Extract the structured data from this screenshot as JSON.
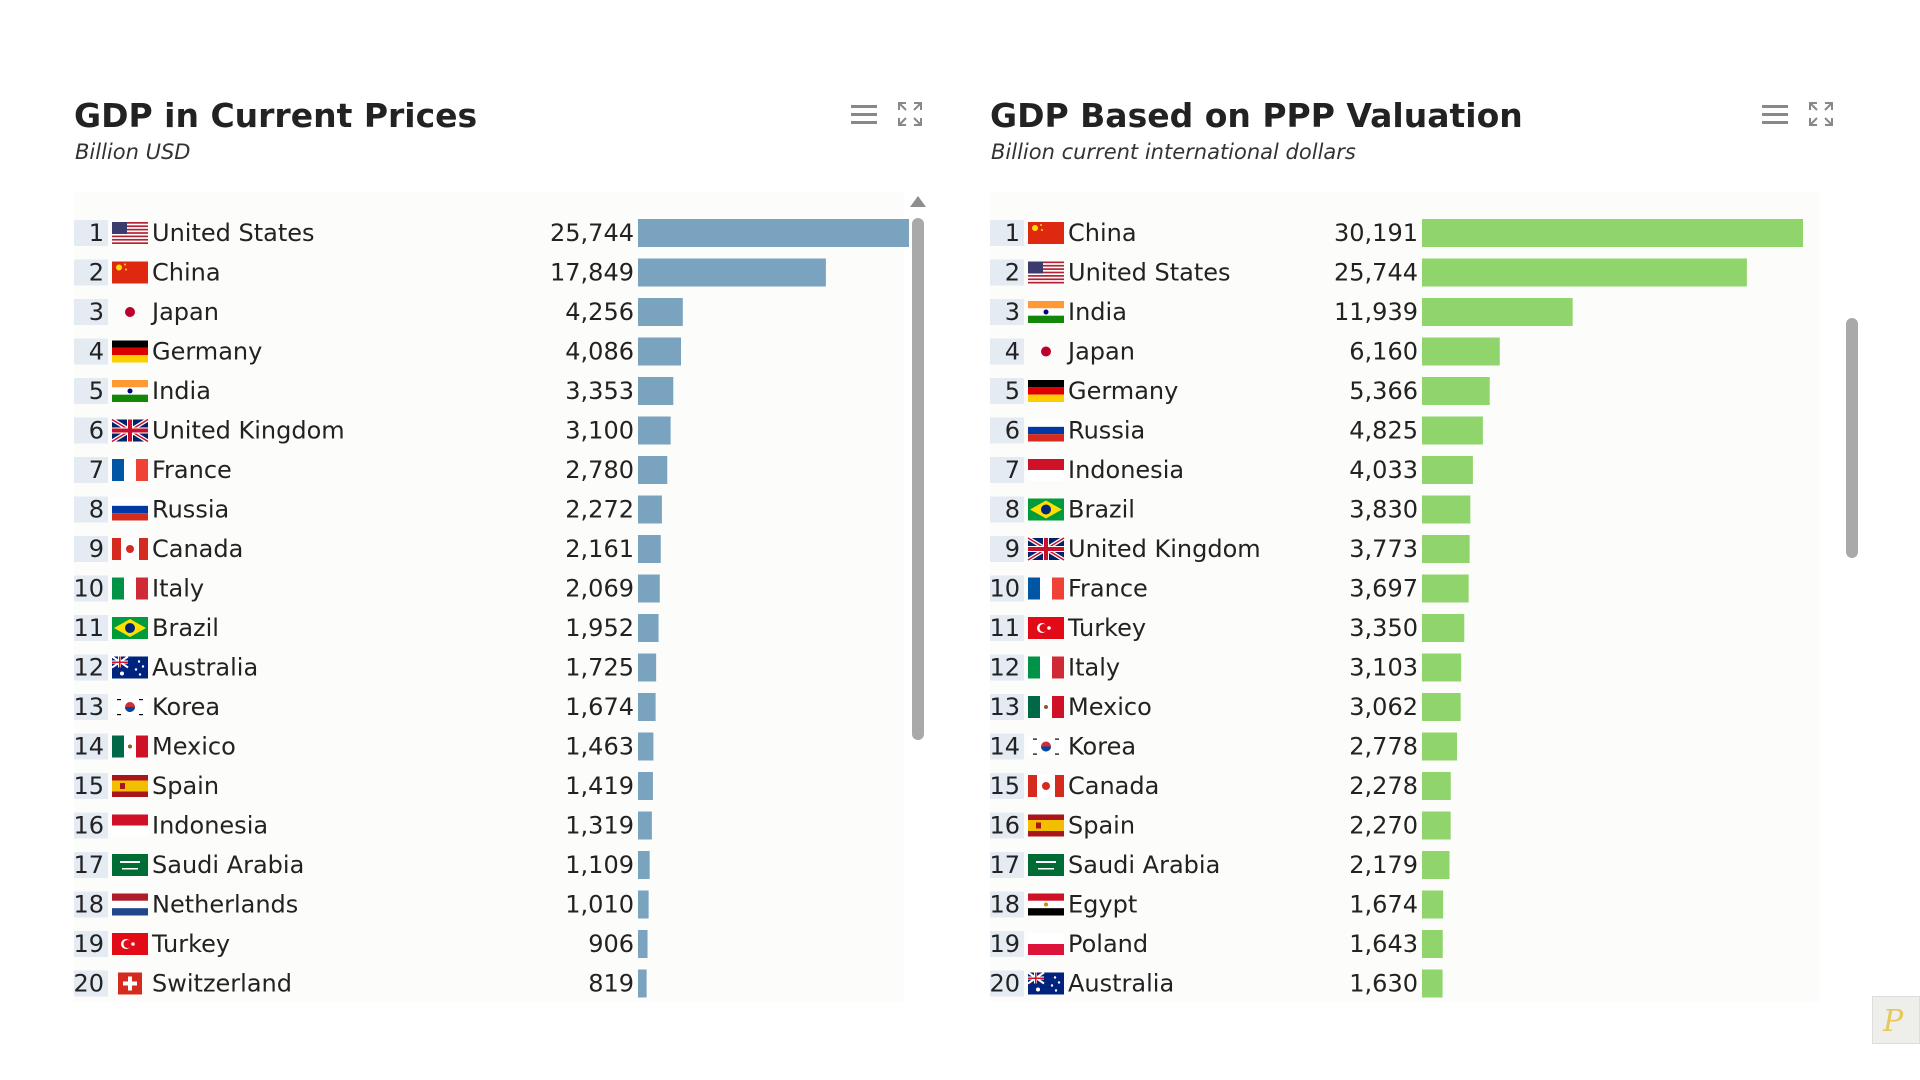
{
  "chart_data": [
    {
      "type": "bar",
      "orientation": "horizontal",
      "title": "GDP in Current Prices",
      "subtitle": "Billion USD",
      "xlim": [
        0,
        25744
      ],
      "ranks": [
        "1",
        "2",
        "3",
        "4",
        "5",
        "6",
        "7",
        "8",
        "9",
        "10",
        "11",
        "12",
        "13",
        "14",
        "15",
        "16",
        "17",
        "18",
        "19",
        "20"
      ],
      "categories": [
        "United States",
        "China",
        "Japan",
        "Germany",
        "India",
        "United Kingdom",
        "France",
        "Russia",
        "Canada",
        "Italy",
        "Brazil",
        "Australia",
        "Korea",
        "Mexico",
        "Spain",
        "Indonesia",
        "Saudi Arabia",
        "Netherlands",
        "Turkey",
        "Switzerland"
      ],
      "flags": [
        "us-flag-icon",
        "cn-flag-icon",
        "jp-flag-icon",
        "de-flag-icon",
        "in-flag-icon",
        "gb-flag-icon",
        "fr-flag-icon",
        "ru-flag-icon",
        "ca-flag-icon",
        "it-flag-icon",
        "br-flag-icon",
        "au-flag-icon",
        "kr-flag-icon",
        "mx-flag-icon",
        "es-flag-icon",
        "id-flag-icon",
        "sa-flag-icon",
        "nl-flag-icon",
        "tr-flag-icon",
        "ch-flag-icon"
      ],
      "values": [
        25744,
        17849,
        4256,
        4086,
        3353,
        3100,
        2780,
        2272,
        2161,
        2069,
        1952,
        1725,
        1674,
        1463,
        1419,
        1319,
        1109,
        1010,
        906,
        819
      ],
      "value_labels": [
        "25,744",
        "17,849",
        "4,256",
        "4,086",
        "3,353",
        "3,100",
        "2,780",
        "2,272",
        "2,161",
        "2,069",
        "1,952",
        "1,725",
        "1,674",
        "1,463",
        "1,419",
        "1,319",
        "1,109",
        "1,010",
        "906",
        "819"
      ],
      "bar_color": "#7aa3c0",
      "grid": false
    },
    {
      "type": "bar",
      "orientation": "horizontal",
      "title": "GDP Based on PPP Valuation",
      "subtitle": "Billion current international dollars",
      "xlim": [
        0,
        30191
      ],
      "ranks": [
        "1",
        "2",
        "3",
        "4",
        "5",
        "6",
        "7",
        "8",
        "9",
        "10",
        "11",
        "12",
        "13",
        "14",
        "15",
        "16",
        "17",
        "18",
        "19",
        "20"
      ],
      "categories": [
        "China",
        "United States",
        "India",
        "Japan",
        "Germany",
        "Russia",
        "Indonesia",
        "Brazil",
        "United Kingdom",
        "France",
        "Turkey",
        "Italy",
        "Mexico",
        "Korea",
        "Canada",
        "Spain",
        "Saudi Arabia",
        "Egypt",
        "Poland",
        "Australia"
      ],
      "flags": [
        "cn-flag-icon",
        "us-flag-icon",
        "in-flag-icon",
        "jp-flag-icon",
        "de-flag-icon",
        "ru-flag-icon",
        "id-flag-icon",
        "br-flag-icon",
        "gb-flag-icon",
        "fr-flag-icon",
        "tr-flag-icon",
        "it-flag-icon",
        "mx-flag-icon",
        "kr-flag-icon",
        "ca-flag-icon",
        "es-flag-icon",
        "sa-flag-icon",
        "eg-flag-icon",
        "pl-flag-icon",
        "au-flag-icon"
      ],
      "values": [
        30191,
        25744,
        11939,
        6160,
        5366,
        4825,
        4033,
        3830,
        3773,
        3697,
        3350,
        3103,
        3062,
        2778,
        2278,
        2270,
        2179,
        1674,
        1643,
        1630
      ],
      "value_labels": [
        "30,191",
        "25,744",
        "11,939",
        "6,160",
        "5,366",
        "4,825",
        "4,033",
        "3,830",
        "3,773",
        "3,697",
        "3,350",
        "3,103",
        "3,062",
        "2,778",
        "2,278",
        "2,270",
        "2,179",
        "1,674",
        "1,643",
        "1,630"
      ],
      "bar_color": "#90d46c",
      "grid": false
    }
  ],
  "icons": {
    "menu": "hamburger-menu-icon",
    "expand": "expand-icon",
    "scroll_up": "chevron-up-icon"
  }
}
